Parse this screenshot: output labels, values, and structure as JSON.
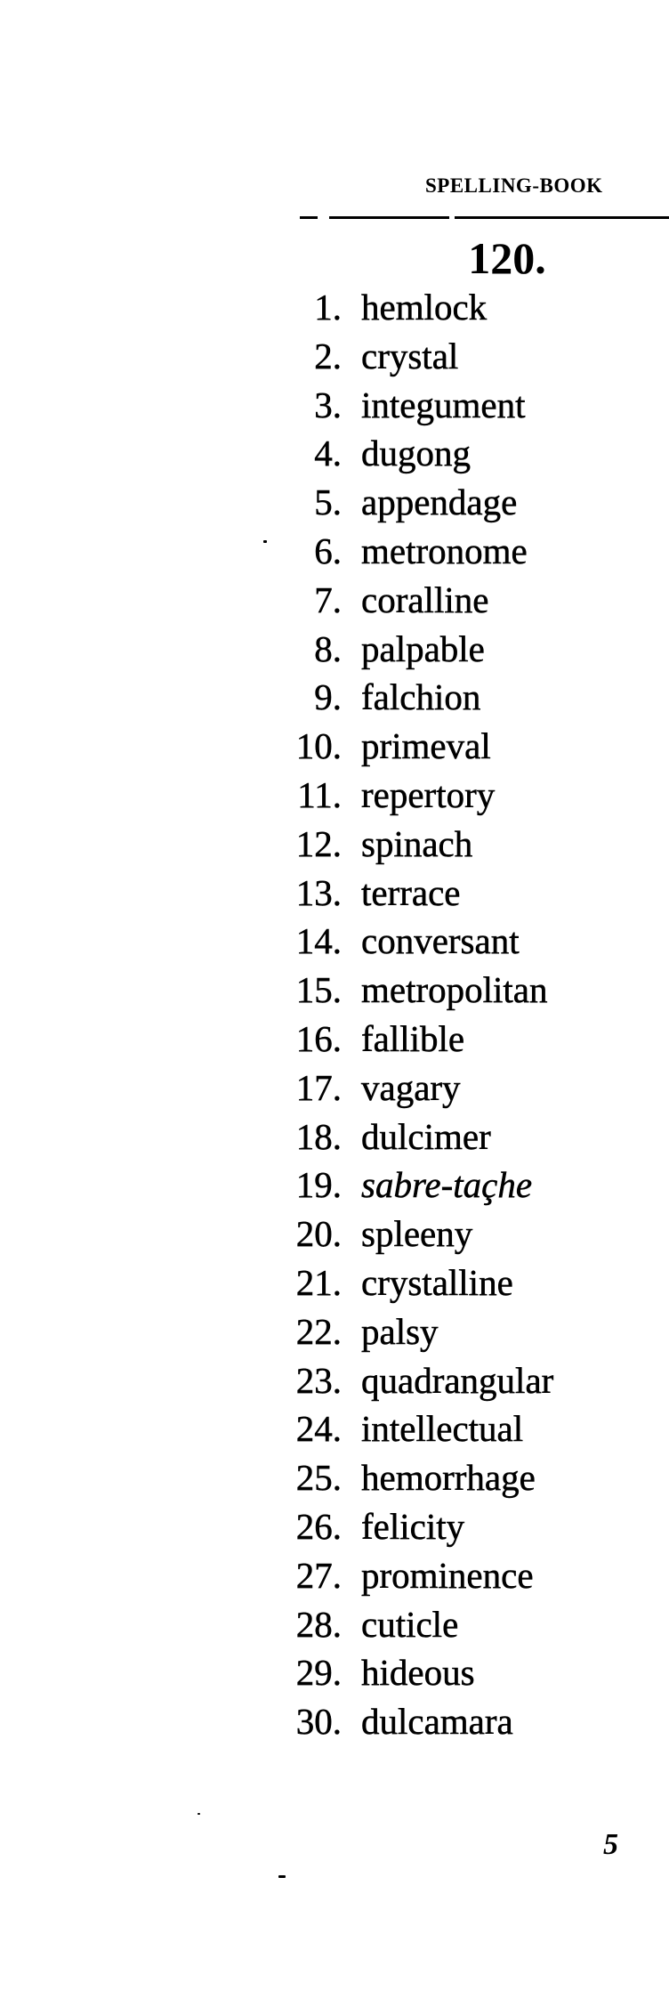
{
  "header": {
    "running_title": "SPELLING-BOOK"
  },
  "lesson": {
    "number": "120."
  },
  "items": [
    {
      "num": "1.",
      "word": "hemlock"
    },
    {
      "num": "2.",
      "word": "crystal"
    },
    {
      "num": "3.",
      "word": "integument"
    },
    {
      "num": "4.",
      "word": "dugong"
    },
    {
      "num": "5.",
      "word": "appendage"
    },
    {
      "num": "6.",
      "word": "metronome"
    },
    {
      "num": "7.",
      "word": "coralline"
    },
    {
      "num": "8.",
      "word": "palpable"
    },
    {
      "num": "9.",
      "word": "falchion"
    },
    {
      "num": "10.",
      "word": "primeval"
    },
    {
      "num": "11.",
      "word": "repertory"
    },
    {
      "num": "12.",
      "word": "spinach"
    },
    {
      "num": "13.",
      "word": "terrace"
    },
    {
      "num": "14.",
      "word": "conversant"
    },
    {
      "num": "15.",
      "word": "metropolitan"
    },
    {
      "num": "16.",
      "word": "fallible"
    },
    {
      "num": "17.",
      "word": "vagary"
    },
    {
      "num": "18.",
      "word": "dulcimer"
    },
    {
      "num": "19.",
      "word": "sabre-taçhe",
      "italic": true
    },
    {
      "num": "20.",
      "word": "spleeny"
    },
    {
      "num": "21.",
      "word": "crystalline"
    },
    {
      "num": "22.",
      "word": "palsy"
    },
    {
      "num": "23.",
      "word": "quadrangular"
    },
    {
      "num": "24.",
      "word": "intellectual"
    },
    {
      "num": "25.",
      "word": "hemorrhage"
    },
    {
      "num": "26.",
      "word": "felicity"
    },
    {
      "num": "27.",
      "word": "prominence"
    },
    {
      "num": "28.",
      "word": "cuticle"
    },
    {
      "num": "29.",
      "word": "hideous"
    },
    {
      "num": "30.",
      "word": "dulcamara"
    }
  ],
  "footer": {
    "page_number": "5"
  }
}
